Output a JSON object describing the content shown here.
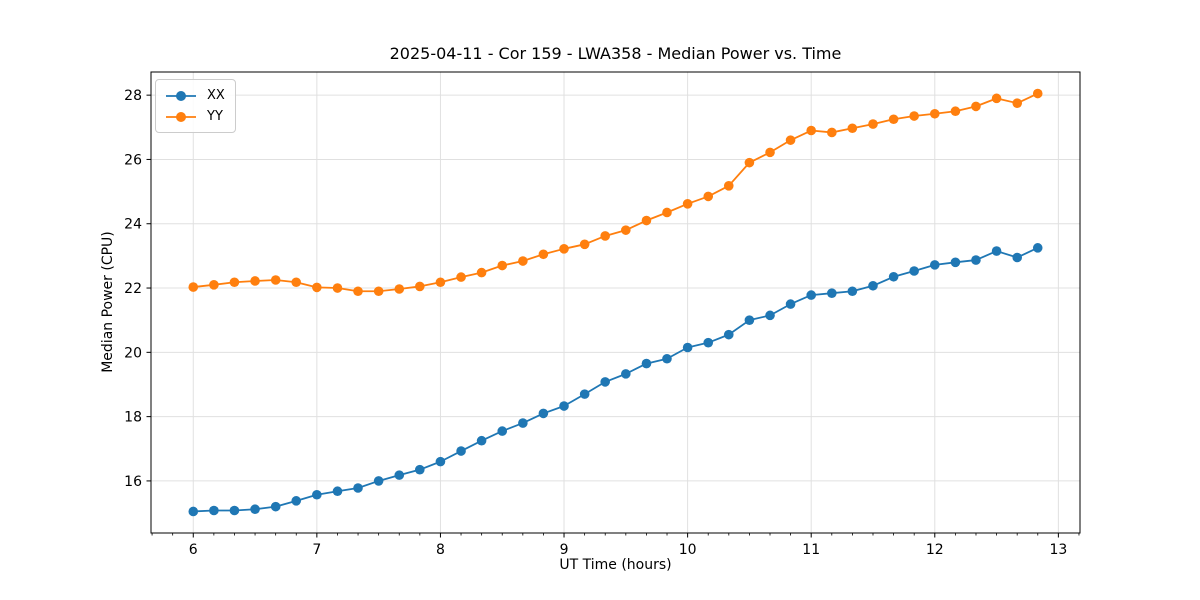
{
  "chart_data": {
    "type": "line",
    "title": "2025-04-11 - Cor 159 - LWA358 - Median Power vs. Time",
    "xlabel": "UT Time (hours)",
    "ylabel": "Median Power (CPU)",
    "x": [
      6.0,
      6.167,
      6.333,
      6.5,
      6.667,
      6.833,
      7.0,
      7.167,
      7.333,
      7.5,
      7.667,
      7.833,
      8.0,
      8.167,
      8.333,
      8.5,
      8.667,
      8.833,
      9.0,
      9.167,
      9.333,
      9.5,
      9.667,
      9.833,
      10.0,
      10.167,
      10.333,
      10.5,
      10.667,
      10.833,
      11.0,
      11.167,
      11.333,
      11.5,
      11.667,
      11.833,
      12.0,
      12.167,
      12.333,
      12.5,
      12.667,
      12.833
    ],
    "series": [
      {
        "name": "XX",
        "color": "#1f77b4",
        "values": [
          15.05,
          15.08,
          15.08,
          15.12,
          15.2,
          15.38,
          15.57,
          15.68,
          15.78,
          16.0,
          16.18,
          16.35,
          16.6,
          16.93,
          17.25,
          17.55,
          17.8,
          18.1,
          18.33,
          18.7,
          19.08,
          19.33,
          19.65,
          19.8,
          20.15,
          20.3,
          20.55,
          21.0,
          21.15,
          21.5,
          21.78,
          21.84,
          21.9,
          22.07,
          22.35,
          22.53,
          22.72,
          22.8,
          22.87,
          23.15,
          22.95,
          23.25
        ]
      },
      {
        "name": "YY",
        "color": "#ff7f0e",
        "values": [
          22.03,
          22.1,
          22.18,
          22.22,
          22.25,
          22.18,
          22.02,
          22.0,
          21.9,
          21.9,
          21.97,
          22.05,
          22.18,
          22.34,
          22.48,
          22.7,
          22.84,
          23.05,
          23.22,
          23.36,
          23.62,
          23.8,
          24.1,
          24.35,
          24.62,
          24.85,
          25.18,
          25.9,
          26.22,
          26.6,
          26.9,
          26.84,
          26.97,
          27.1,
          27.25,
          27.35,
          27.42,
          27.5,
          27.65,
          27.9,
          27.75,
          28.05
        ]
      }
    ],
    "xlim": [
      5.658,
      13.175
    ],
    "ylim": [
      14.38,
      28.72
    ],
    "xticks": [
      6,
      7,
      8,
      9,
      10,
      11,
      12,
      13
    ],
    "yticks": [
      16,
      18,
      20,
      22,
      24,
      26,
      28
    ],
    "x_minor_step": 0.1666667,
    "grid": true,
    "grid_color": "#e0e0e0",
    "legend_position": "upper left",
    "marker": "o"
  }
}
